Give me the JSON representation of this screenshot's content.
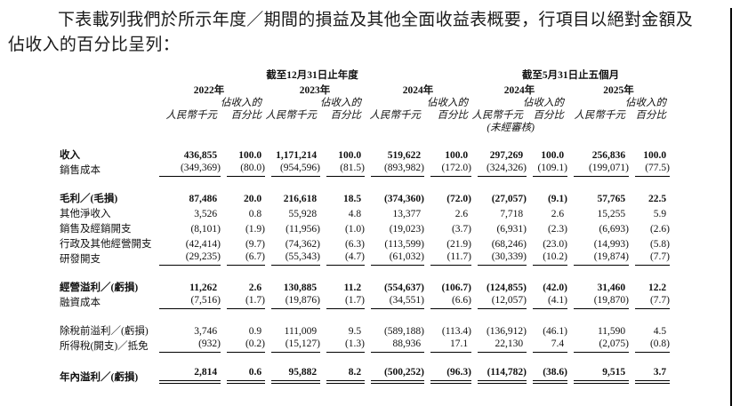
{
  "page": {
    "intro": "下表載列我們於所示年度／期間的損益及其他全面收益表概要，行項目以絕對金額及佔收入的百分比呈列："
  },
  "table": {
    "period_groups": [
      {
        "label": "截至12月31日止年度"
      },
      {
        "label": "截至5月31日止五個月"
      }
    ],
    "year_columns": [
      "2022年",
      "2023年",
      "2024年",
      "2024年",
      "2025年"
    ],
    "pct_header_line1": "佔收入的",
    "money_header": "人民幣千元",
    "pct_header_line2": "百分比",
    "unaudited_note": "(未經審核)",
    "rows": [
      {
        "label": "收入",
        "bold": true,
        "values": [
          "436,855",
          "100.0",
          "1,171,214",
          "100.0",
          "519,622",
          "100.0",
          "297,269",
          "100.0",
          "256,836",
          "100.0"
        ]
      },
      {
        "label": "銷售成本",
        "rule": "single",
        "values": [
          "(349,369)",
          "(80.0)",
          "(954,596)",
          "(81.5)",
          "(893,982)",
          "(172.0)",
          "(324,326)",
          "(109.1)",
          "(199,071)",
          "(77.5)"
        ]
      },
      {
        "spacer": true
      },
      {
        "label": "毛利／(毛損)",
        "bold": true,
        "values": [
          "87,486",
          "20.0",
          "216,618",
          "18.5",
          "(374,360)",
          "(72.0)",
          "(27,057)",
          "(9.1)",
          "57,765",
          "22.5"
        ]
      },
      {
        "label": "其他淨收入",
        "values": [
          "3,526",
          "0.8",
          "55,928",
          "4.8",
          "13,377",
          "2.6",
          "7,718",
          "2.6",
          "15,255",
          "5.9"
        ]
      },
      {
        "label": "銷售及經銷開支",
        "values": [
          "(8,101)",
          "(1.9)",
          "(11,956)",
          "(1.0)",
          "(19,023)",
          "(3.7)",
          "(6,931)",
          "(2.3)",
          "(6,693)",
          "(2.6)"
        ]
      },
      {
        "label": "行政及其他經營開支",
        "values": [
          "(42,414)",
          "(9.7)",
          "(74,362)",
          "(6.3)",
          "(113,599)",
          "(21.9)",
          "(68,246)",
          "(23.0)",
          "(14,993)",
          "(5.8)"
        ]
      },
      {
        "label": "研發開支",
        "rule": "single",
        "values": [
          "(29,235)",
          "(6.7)",
          "(55,343)",
          "(4.7)",
          "(61,032)",
          "(11.7)",
          "(30,339)",
          "(10.2)",
          "(19,874)",
          "(7.7)"
        ]
      },
      {
        "spacer": true
      },
      {
        "label": "經營溢利／(虧損)",
        "bold": true,
        "values": [
          "11,262",
          "2.6",
          "130,885",
          "11.2",
          "(554,637)",
          "(106.7)",
          "(124,855)",
          "(42.0)",
          "31,460",
          "12.2"
        ]
      },
      {
        "label": "融資成本",
        "rule": "single",
        "values": [
          "(7,516)",
          "(1.7)",
          "(19,876)",
          "(1.7)",
          "(34,551)",
          "(6.6)",
          "(12,057)",
          "(4.1)",
          "(19,870)",
          "(7.7)"
        ]
      },
      {
        "spacer": true
      },
      {
        "label": "除稅前溢利／(虧損)",
        "values": [
          "3,746",
          "0.9",
          "111,009",
          "9.5",
          "(589,188)",
          "(113.4)",
          "(136,912)",
          "(46.1)",
          "11,590",
          "4.5"
        ]
      },
      {
        "label": "所得稅(開支)／抵免",
        "rule": "single",
        "values": [
          "(932)",
          "(0.2)",
          "(15,127)",
          "(1.3)",
          "88,936",
          "17.1",
          "22,130",
          "7.4",
          "(2,075)",
          "(0.8)"
        ]
      },
      {
        "spacer": true
      },
      {
        "label": "年內溢利／(虧損)",
        "bold": true,
        "rule": "double",
        "values": [
          "2,814",
          "0.6",
          "95,882",
          "8.2",
          "(500,252)",
          "(96.3)",
          "(114,782)",
          "(38.6)",
          "9,515",
          "3.7"
        ]
      }
    ]
  }
}
